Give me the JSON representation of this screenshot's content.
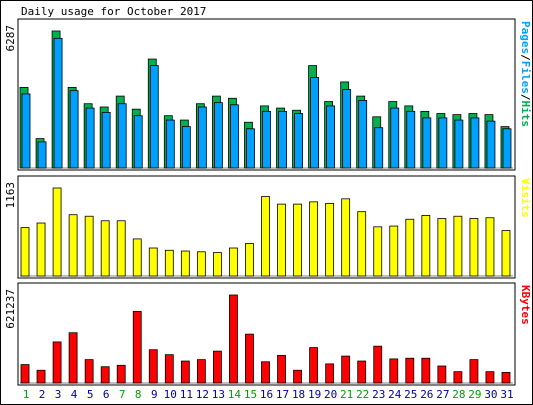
{
  "chart_data": {
    "type": "bar",
    "title": "Daily usage for October 2017",
    "categories": [
      "1",
      "2",
      "3",
      "4",
      "5",
      "6",
      "7",
      "8",
      "9",
      "10",
      "11",
      "12",
      "13",
      "14",
      "15",
      "16",
      "17",
      "18",
      "19",
      "20",
      "21",
      "22",
      "23",
      "24",
      "25",
      "26",
      "27",
      "28",
      "29",
      "30",
      "31"
    ],
    "weekend_days": [
      1,
      7,
      8,
      14,
      15,
      21,
      22,
      28,
      29
    ],
    "panels": [
      {
        "name": "pages-files-hits",
        "right_label": [
          "Pages",
          "/",
          "Files",
          "/",
          "Hits"
        ],
        "ytick_label": "6287",
        "ymax": 6287,
        "series": [
          {
            "name": "Hits",
            "color": "#00b050",
            "values": [
              3700,
              1350,
              6287,
              3700,
              2950,
              2800,
              3300,
              2700,
              5000,
              2400,
              2200,
              2950,
              3300,
              3200,
              2100,
              2850,
              2750,
              2650,
              4700,
              3050,
              3950,
              3300,
              2350,
              3050,
              2850,
              2600,
              2500,
              2450,
              2500,
              2450,
              1900
            ]
          },
          {
            "name": "Files",
            "color": "#00a0ff",
            "values": [
              3400,
              1200,
              5950,
              3550,
              2750,
              2550,
              2950,
              2400,
              4700,
              2200,
              1900,
              2800,
              3000,
              2900,
              1800,
              2600,
              2600,
              2500,
              4150,
              2850,
              3600,
              3100,
              1850,
              2750,
              2600,
              2300,
              2300,
              2200,
              2300,
              2150,
              1800
            ]
          },
          {
            "name": "Pages",
            "color": "#00a0ff",
            "values": []
          }
        ]
      },
      {
        "name": "visits",
        "right_label": [
          "Visits"
        ],
        "ytick_label": "1163",
        "ymax": 1163,
        "series": [
          {
            "name": "Visits",
            "color": "#ffff00",
            "values": [
              640,
              700,
              1163,
              810,
              790,
              730,
              730,
              490,
              370,
              340,
              330,
              320,
              310,
              370,
              430,
              1050,
              950,
              950,
              980,
              960,
              1020,
              850,
              650,
              660,
              750,
              800,
              760,
              790,
              760,
              770,
              600
            ]
          }
        ]
      },
      {
        "name": "kbytes",
        "right_label": [
          "KBytes"
        ],
        "ytick_label": "621237",
        "ymax": 621237,
        "series": [
          {
            "name": "KBytes",
            "color": "#ff0000",
            "values": [
              130000,
              90000,
              290000,
              355000,
              165000,
              115000,
              125000,
              505000,
              235000,
              200000,
              155000,
              165000,
              225000,
              621237,
              345000,
              150000,
              195000,
              90000,
              250000,
              135000,
              190000,
              155000,
              260000,
              170000,
              175000,
              175000,
              120000,
              80000,
              165000,
              80000,
              75000
            ]
          }
        ]
      }
    ],
    "grid": false,
    "legend": "right-vertical-labels"
  },
  "colors": {
    "background": "#ffffff",
    "frame_bg": "#ffffff",
    "weekend_label": "#00a000",
    "weekday_label": "#0000a0",
    "hits": "#00b050",
    "files": "#00a0ff",
    "pages": "#00a0ff",
    "visits": "#ffff00",
    "kbytes": "#ff0000"
  }
}
